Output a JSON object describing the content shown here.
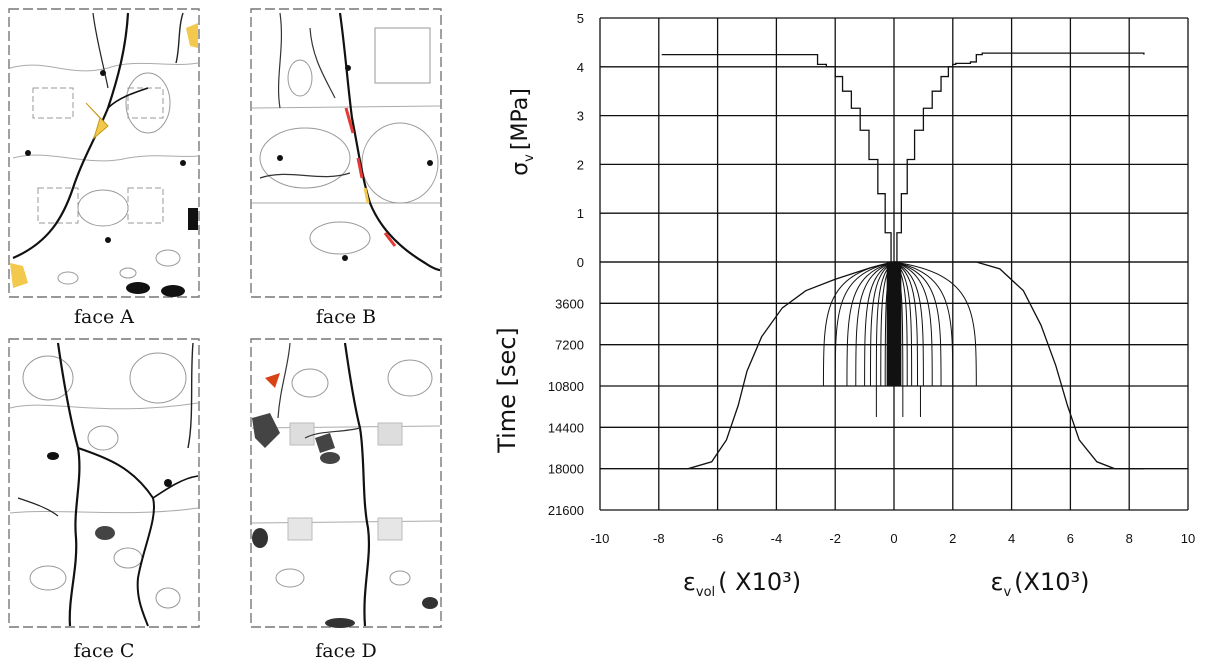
{
  "panels": {
    "face_a": {
      "label": "face A"
    },
    "face_b": {
      "label": "face B"
    },
    "face_c": {
      "label": "face C"
    },
    "face_d": {
      "label": "face D"
    }
  },
  "chart_data": {
    "type": "line",
    "title": "",
    "upper": {
      "ylabel": "σv [MPa]",
      "ylabel_main": "σ",
      "ylabel_sub": "v",
      "ylabel_unit": "[MPa]",
      "ylim": [
        0,
        5
      ],
      "yticks": [
        "0",
        "1",
        "2",
        "3",
        "4",
        "5"
      ],
      "series": [
        {
          "values_x": [
            0.0,
            0.1,
            0.25,
            0.45,
            0.7,
            1.0,
            1.3,
            1.6,
            1.85,
            2.0,
            2.1,
            2.6,
            2.8,
            3.0,
            8.5
          ],
          "values_y": [
            0.0,
            0.6,
            1.4,
            2.1,
            2.7,
            3.15,
            3.5,
            3.8,
            4.0,
            4.05,
            4.07,
            4.1,
            4.25,
            4.28,
            4.25
          ]
        },
        {
          "values_x": [
            0.0,
            -0.1,
            -0.3,
            -0.55,
            -0.85,
            -1.15,
            -1.45,
            -1.75,
            -2.0,
            -2.3,
            -2.6,
            -7.9
          ],
          "values_y": [
            0.0,
            0.6,
            1.4,
            2.1,
            2.7,
            3.15,
            3.5,
            3.8,
            4.0,
            4.05,
            4.25,
            4.25
          ]
        }
      ]
    },
    "lower": {
      "ylabel": "Time [sec]",
      "ylim": [
        0,
        21600
      ],
      "yticks": [
        "0",
        "3600",
        "7200",
        "10800",
        "14400",
        "18000",
        "21600"
      ],
      "series": [
        {
          "values_x": [
            0.0,
            -0.8,
            -2.0,
            -3.0,
            -3.8,
            -4.5,
            -5.0,
            -5.3,
            -5.7,
            -6.2,
            -7.0,
            -7.9
          ],
          "values_y": [
            0,
            500,
            1500,
            2500,
            4000,
            6500,
            9500,
            12500,
            15500,
            17400,
            18000,
            18000
          ]
        },
        {
          "values_x": [
            0.0,
            2.8,
            3.6,
            4.4,
            5.0,
            5.5,
            5.9,
            6.3,
            6.9,
            7.5,
            8.5
          ],
          "values_y": [
            0,
            0,
            600,
            2500,
            5500,
            9000,
            12500,
            15500,
            17400,
            18000,
            18000
          ]
        }
      ],
      "bands_x": [
        -2.4,
        -2.0,
        -1.6,
        -1.3,
        -1.0,
        -0.8,
        -0.6,
        -0.45,
        -0.3,
        -0.2,
        0.3,
        0.45,
        0.6,
        0.8,
        1.0,
        1.3,
        1.6,
        2.0,
        2.8
      ],
      "band_time": 10800
    },
    "x": {
      "xlim": [
        -10,
        10
      ],
      "xticks": [
        "-10",
        "-8",
        "-6",
        "-4",
        "-2",
        "0",
        "2",
        "4",
        "6",
        "8",
        "10"
      ],
      "xlabel_left": "εvol (X10³)",
      "xlabel_left_main": "ε",
      "xlabel_left_sub": "vol",
      "xlabel_left_unit": "( X10³)",
      "xlabel_right": "εv(X10³)",
      "xlabel_right_main": "ε",
      "xlabel_right_sub": "v",
      "xlabel_right_unit": "(X10³)"
    },
    "grid": true
  }
}
